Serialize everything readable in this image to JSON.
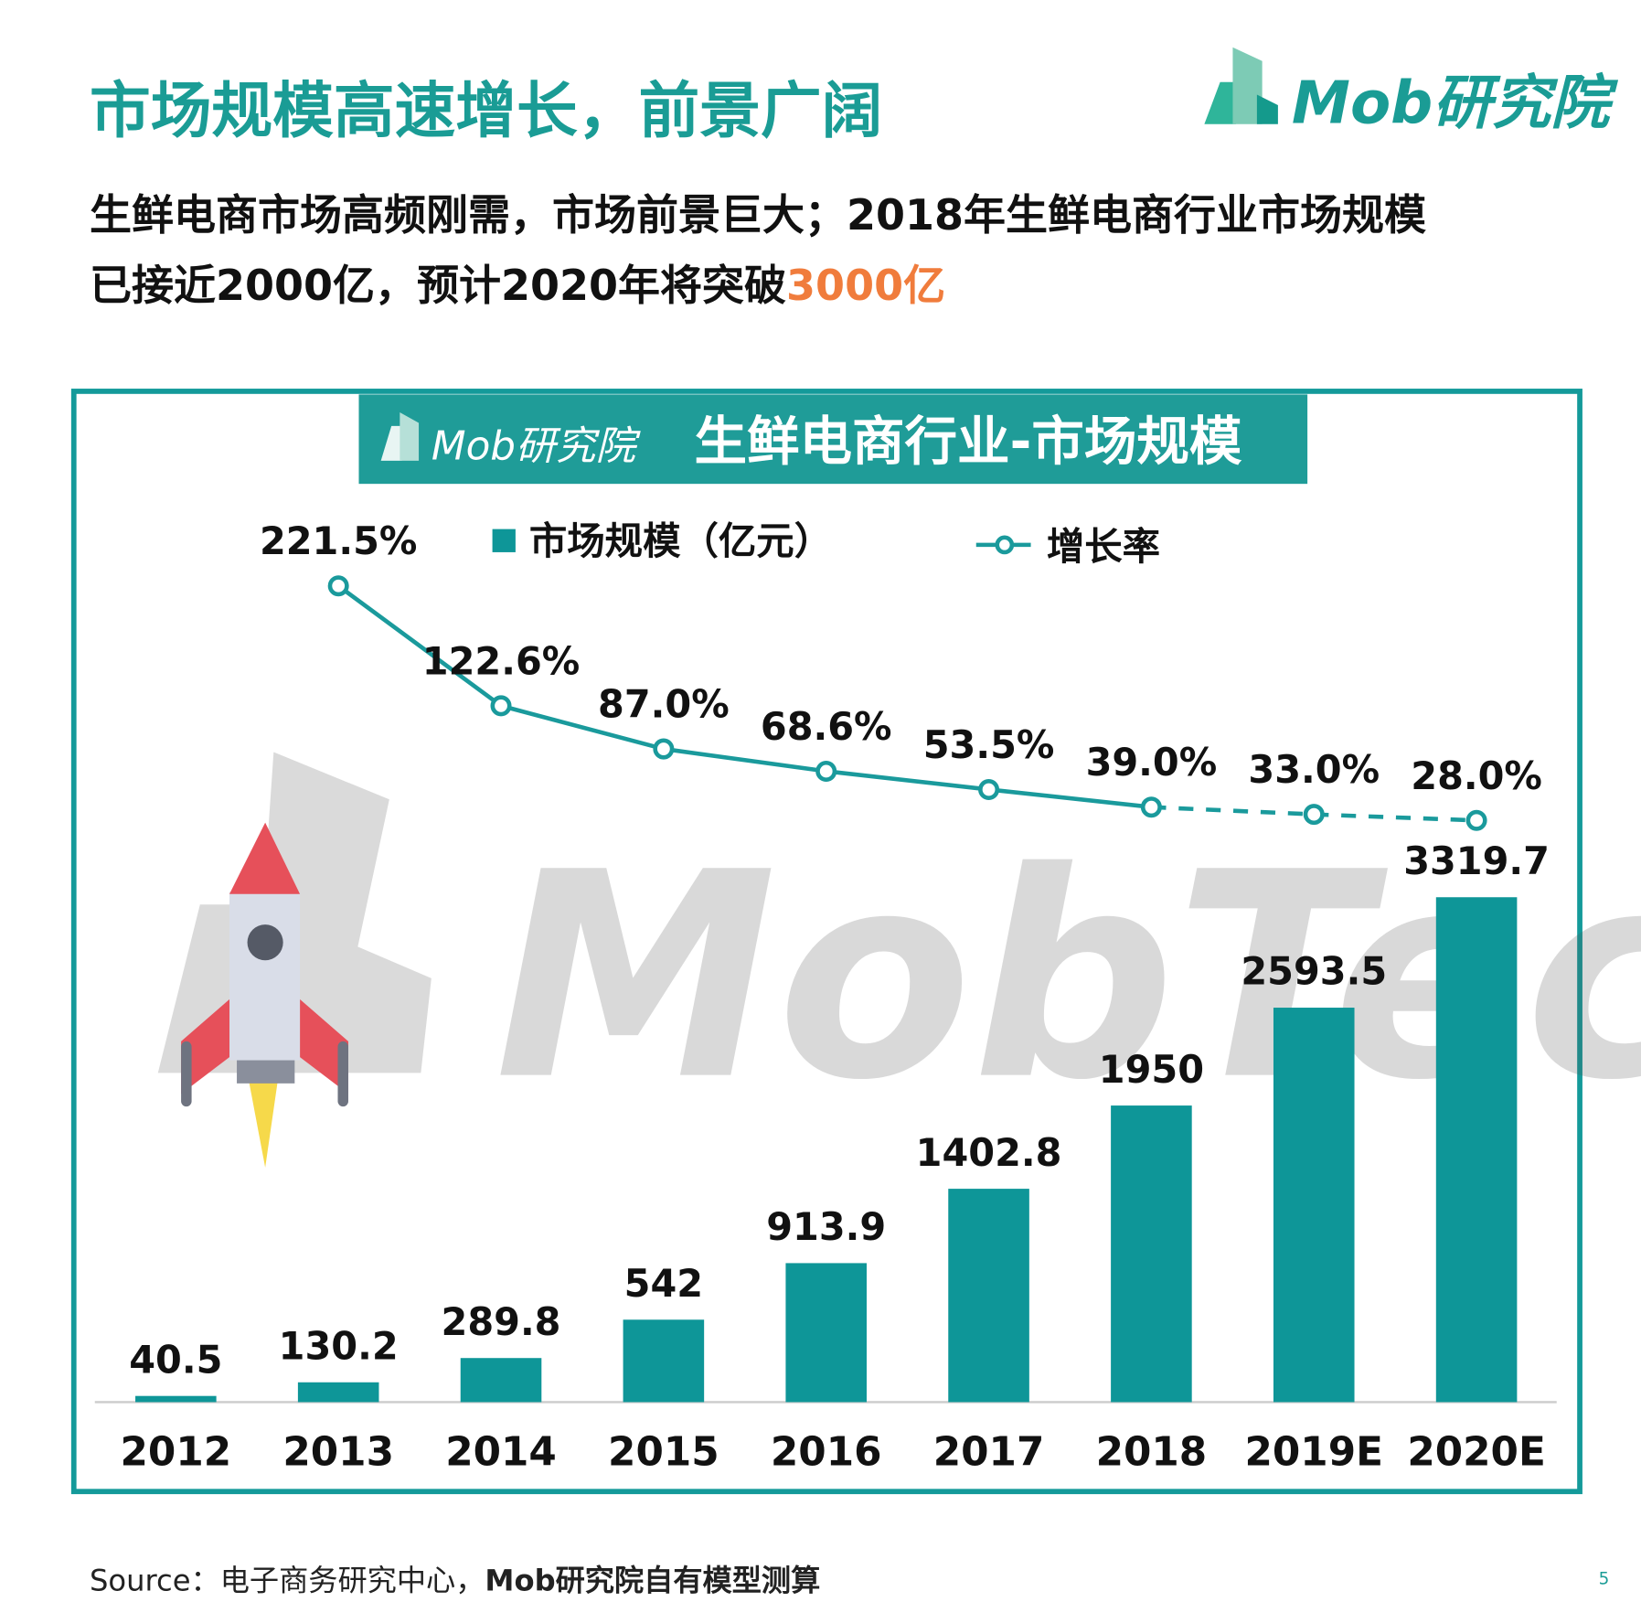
{
  "header": {
    "title": "市场规模高速增长，前景广阔",
    "logo": "Mob研究院",
    "subtitle_line1": "生鲜电商市场高频刚需，市场前景巨大；2018年生鲜电商行业市场规模",
    "subtitle_line2": "已接近2000亿，预计2020年将突破",
    "subtitle_highlight": "3000亿"
  },
  "chart_data": {
    "type": "bar_line",
    "title": "生鲜电商行业-市场规模",
    "logo": "Mob研究院",
    "watermark": "MobTech",
    "categories": [
      "2012",
      "2013",
      "2014",
      "2015",
      "2016",
      "2017",
      "2018",
      "2019E",
      "2020E"
    ],
    "series": [
      {
        "name": "市场规模（亿元）",
        "type": "bar",
        "color": "#0e9698",
        "values": [
          40.5,
          130.2,
          289.8,
          542,
          913.9,
          1402.8,
          1950,
          2593.5,
          3319.7
        ]
      },
      {
        "name": "增长率",
        "type": "line",
        "color": "#1a9a9c",
        "values": [
          null,
          221.5,
          122.6,
          87.0,
          68.6,
          53.5,
          39.0,
          33.0,
          28.0
        ],
        "value_labels": [
          null,
          "221.5%",
          "122.6%",
          "87.0%",
          "68.6%",
          "53.5%",
          "39.0%",
          "33.0%",
          "28.0%"
        ]
      }
    ]
  },
  "footer": {
    "source": "Source：电子商务研究中心，",
    "source_bold": "Mob研究院自有模型测算",
    "page": "5"
  }
}
